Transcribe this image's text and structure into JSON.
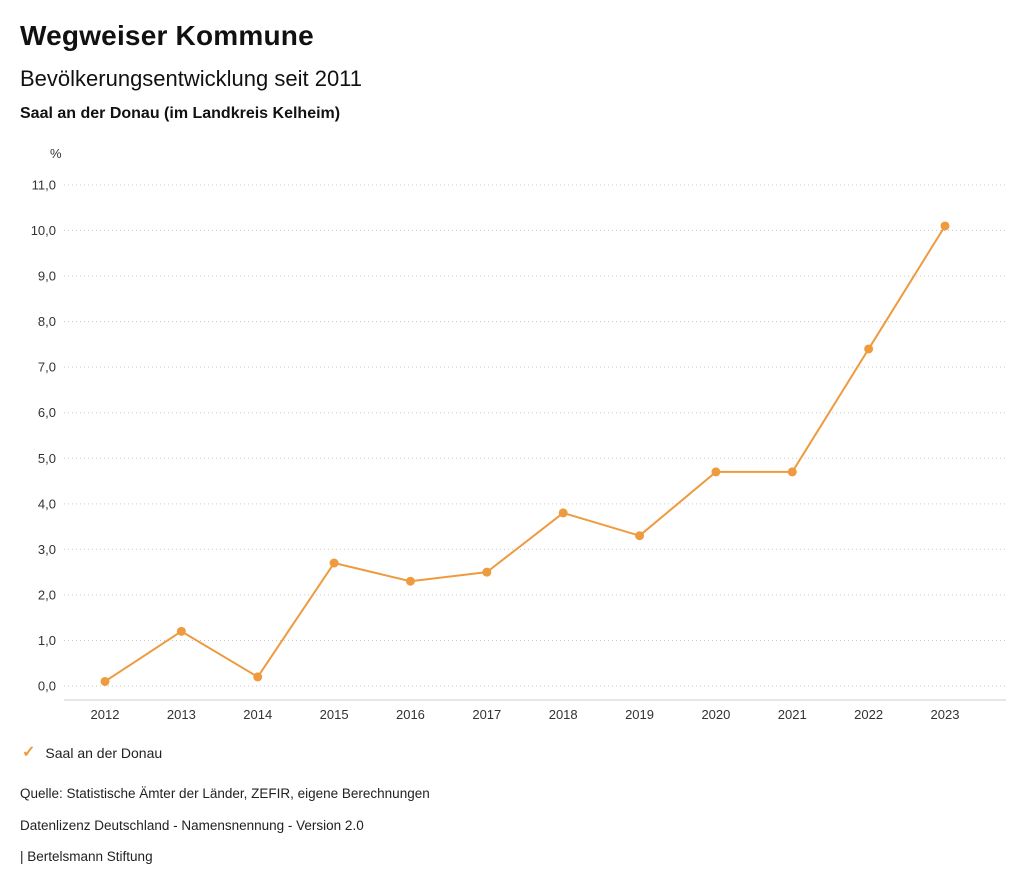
{
  "header": {
    "title": "Wegweiser Kommune",
    "subtitle": "Bevölkerungsentwicklung seit 2011",
    "region": "Saal an der Donau (im Landkreis Kelheim)"
  },
  "chart_data": {
    "type": "line",
    "title": "Bevölkerungsentwicklung seit 2011",
    "subtitle": "Saal an der Donau (im Landkreis Kelheim)",
    "xlabel": "",
    "ylabel": "%",
    "categories": [
      "2012",
      "2013",
      "2014",
      "2015",
      "2016",
      "2017",
      "2018",
      "2019",
      "2020",
      "2021",
      "2022",
      "2023"
    ],
    "series": [
      {
        "name": "Saal an der Donau",
        "color": "#EE9B40",
        "values": [
          0.1,
          1.2,
          0.2,
          2.7,
          2.3,
          2.5,
          3.8,
          3.3,
          4.7,
          4.7,
          7.4,
          10.1
        ]
      }
    ],
    "ylim": [
      0,
      11
    ],
    "ytick_step": 1,
    "ytick_labels": [
      "0,0",
      "1,0",
      "2,0",
      "3,0",
      "4,0",
      "5,0",
      "6,0",
      "7,0",
      "8,0",
      "9,0",
      "10,0",
      "11,0"
    ],
    "grid": "horizontal-dotted",
    "gridline_color": "#c9c9c9",
    "axis_line_color": "#cccccc",
    "legend_position": "bottom-left"
  },
  "legend": {
    "items": [
      {
        "label": "Saal an der Donau",
        "color": "#EE9B40",
        "check_icon": "✓"
      }
    ]
  },
  "footer": {
    "source": "Quelle: Statistische Ämter der Länder, ZEFIR, eigene Berechnungen",
    "license": "Datenlizenz Deutschland - Namensnennung - Version 2.0",
    "attribution": "| Bertelsmann Stiftung"
  }
}
